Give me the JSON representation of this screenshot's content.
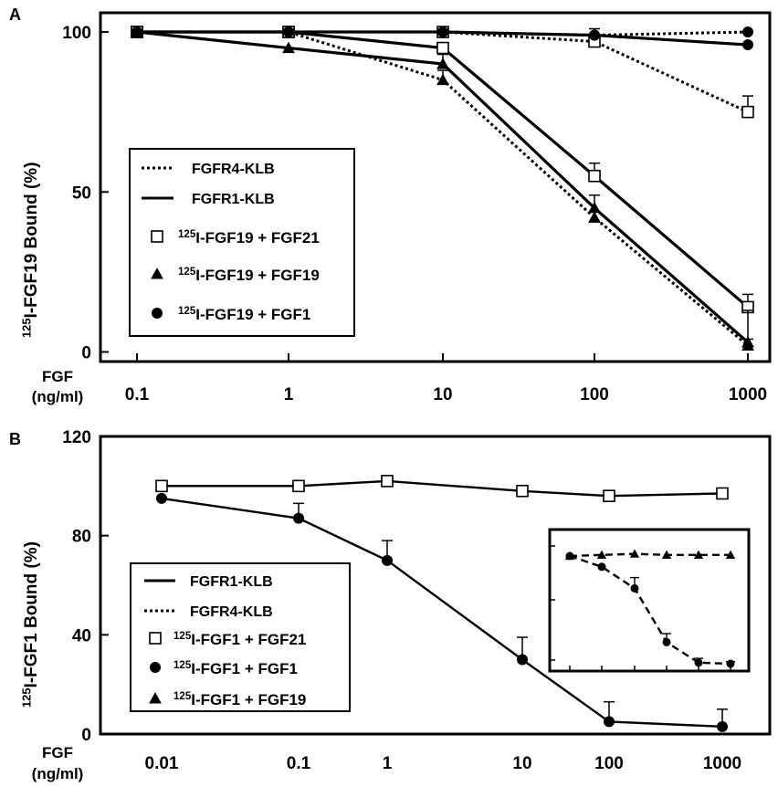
{
  "chart_data": [
    {
      "panel": "A",
      "type": "line",
      "x_scale": "log",
      "x": [
        0.1,
        1,
        10,
        100,
        1000
      ],
      "x_tick_labels": [
        "0.1",
        "1",
        "10",
        "100",
        "1000"
      ],
      "xlabel": [
        "FGF",
        "(ng/ml)"
      ],
      "ylabel": "125I-FGF19 Bound (%)",
      "ylabel_sup": "125",
      "ylabel_main": "I-FGF19 Bound (%)",
      "ylim": [
        -3,
        106
      ],
      "y_ticks": [
        0,
        50,
        100
      ],
      "legend_placement": "center-left",
      "legend": [
        {
          "text": "FGFR4-KLB",
          "kind": "line",
          "style": "dotted"
        },
        {
          "text": "FGFR1-KLB",
          "kind": "line",
          "style": "solid"
        },
        {
          "sup": "125",
          "text": "I-FGF19 + FGF21",
          "kind": "marker",
          "marker": "open-square"
        },
        {
          "sup": "125",
          "text": "I-FGF19 + FGF19",
          "kind": "marker",
          "marker": "triangle"
        },
        {
          "sup": "125",
          "text": "I-FGF19 + FGF1",
          "kind": "marker",
          "marker": "circle"
        }
      ],
      "series": [
        {
          "receptor": "FGFR4-KLB",
          "ligand": "FGF21",
          "line": "dotted",
          "marker": "open-square",
          "values": [
            100,
            100,
            100,
            97,
            75
          ],
          "errors": [
            0,
            0,
            0,
            4,
            5
          ]
        },
        {
          "receptor": "FGFR4-KLB",
          "ligand": "FGF19",
          "line": "dotted",
          "marker": "triangle",
          "values": [
            100,
            100,
            85,
            42,
            2
          ],
          "errors": [
            0,
            0,
            3,
            2,
            2
          ]
        },
        {
          "receptor": "FGFR4-KLB",
          "ligand": "FGF1",
          "line": "dotted",
          "marker": "circle",
          "values": [
            100,
            100,
            100,
            99,
            100
          ],
          "errors": [
            0,
            0,
            0,
            0,
            0
          ]
        },
        {
          "receptor": "FGFR1-KLB",
          "ligand": "FGF21",
          "line": "solid",
          "marker": "open-square",
          "values": [
            100,
            100,
            95,
            55,
            14
          ],
          "errors": [
            0,
            0,
            0,
            4,
            4
          ]
        },
        {
          "receptor": "FGFR1-KLB",
          "ligand": "FGF19",
          "line": "solid",
          "marker": "triangle",
          "values": [
            100,
            95,
            90,
            45,
            3
          ],
          "errors": [
            0,
            0,
            3,
            4,
            10
          ]
        },
        {
          "receptor": "FGFR1-KLB",
          "ligand": "FGF1",
          "line": "solid",
          "marker": "circle",
          "values": [
            100,
            100,
            100,
            99,
            96
          ],
          "errors": [
            0,
            0,
            0,
            0,
            0
          ]
        }
      ]
    },
    {
      "panel": "B",
      "type": "line",
      "x_scale": "log",
      "x": [
        0.01,
        0.1,
        1,
        10,
        100,
        1000
      ],
      "x_tick_labels": [
        "0.01",
        "0.1",
        "1",
        "10",
        "100",
        "1000"
      ],
      "xlabel": [
        "FGF",
        "(ng/ml)"
      ],
      "ylabel": "125I-FGF1 Bound (%)",
      "ylabel_sup": "125",
      "ylabel_main": "I-FGF1 Bound (%)",
      "ylim": [
        0,
        120
      ],
      "y_ticks": [
        0,
        40,
        80,
        120
      ],
      "legend_placement": "bottom-left",
      "legend": [
        {
          "text": "FGFR1-KLB",
          "kind": "line",
          "style": "solid"
        },
        {
          "text": "FGFR4-KLB",
          "kind": "line",
          "style": "dotted"
        },
        {
          "sup": "125",
          "text": "I-FGF1 + FGF21",
          "kind": "marker",
          "marker": "open-square"
        },
        {
          "sup": "125",
          "text": "I-FGF1 + FGF1",
          "kind": "marker",
          "marker": "circle"
        },
        {
          "sup": "125",
          "text": "I-FGF1 + FGF19",
          "kind": "marker",
          "marker": "triangle"
        }
      ],
      "series": [
        {
          "receptor": "FGFR1-KLB",
          "ligand": "FGF21",
          "line": "solid",
          "marker": "open-square",
          "values": [
            100,
            100,
            102,
            98,
            96,
            97
          ],
          "errors": [
            0,
            0,
            0,
            0,
            0,
            0
          ]
        },
        {
          "receptor": "FGFR1-KLB",
          "ligand": "FGF1",
          "line": "solid",
          "marker": "circle",
          "values": [
            95,
            87,
            70,
            30,
            5,
            3
          ],
          "errors": [
            0,
            6,
            8,
            9,
            8,
            7
          ]
        }
      ],
      "inset": {
        "placement": "right",
        "line": "dashed",
        "series": [
          {
            "ligand": "FGF19",
            "marker": "triangle",
            "values": [
              100,
              101,
              102,
              101,
              101,
              101
            ],
            "errors": [
              0,
              0,
              0,
              0,
              0,
              0
            ]
          },
          {
            "ligand": "FGF1",
            "marker": "circle",
            "values": [
              100,
              90,
              70,
              20,
              1,
              0
            ],
            "errors": [
              0,
              0,
              10,
              8,
              4,
              2
            ]
          }
        ]
      }
    }
  ],
  "panel_labels": [
    "A",
    "B"
  ]
}
